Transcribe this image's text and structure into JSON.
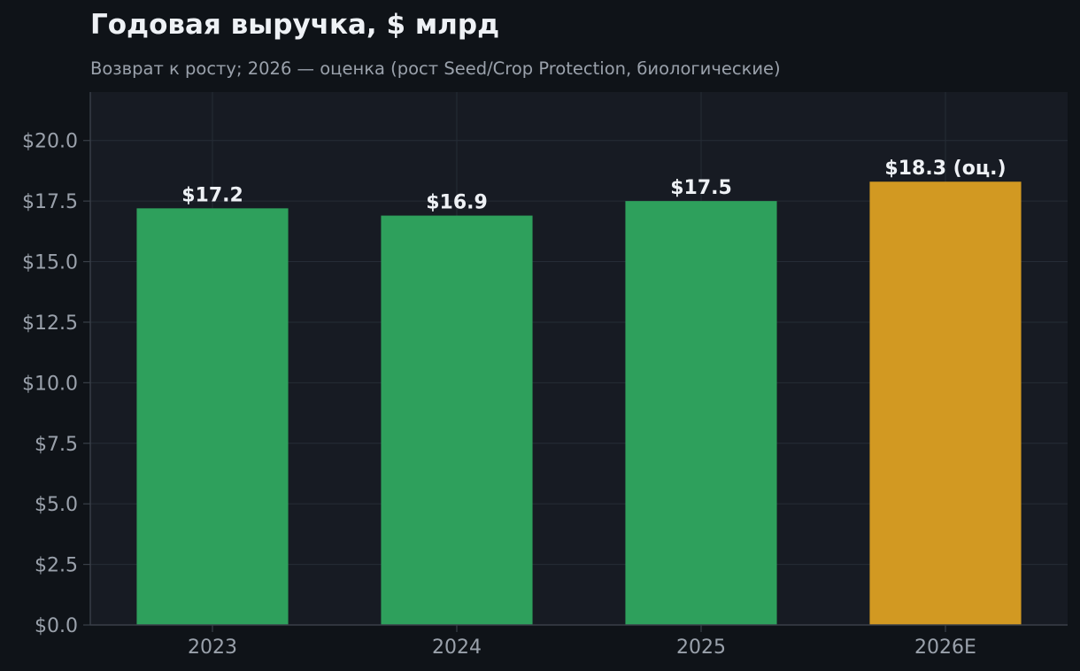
{
  "chart_data": {
    "type": "bar",
    "title": "Годовая выручка, $ млрд",
    "subtitle": "Возврат к росту; 2026 — оценка (рост Seed/Crop Protection, биологические)",
    "categories": [
      "2023",
      "2024",
      "2025",
      "2026E"
    ],
    "values": [
      17.2,
      16.9,
      17.5,
      18.3
    ],
    "data_labels": [
      "$17.2",
      "$16.9",
      "$17.5",
      "$18.3 (оц.)"
    ],
    "estimate_flags": [
      false,
      false,
      false,
      true
    ],
    "yticks": [
      0,
      2.5,
      5,
      7.5,
      10,
      12.5,
      15,
      17.5,
      20
    ],
    "ytick_labels": [
      "$0.0",
      "$2.5",
      "$5.0",
      "$7.5",
      "$10.0",
      "$12.5",
      "$15.0",
      "$17.5",
      "$20.0"
    ],
    "ylim": [
      0,
      22
    ],
    "xlabel": "",
    "ylabel": "",
    "grid": true,
    "colors": {
      "actual": "#2ea05c",
      "estimate": "#d29922",
      "page_background": "#0f1318",
      "plot_background": "#171b23",
      "grid": "#262c36",
      "axis": "#3a4049"
    }
  }
}
